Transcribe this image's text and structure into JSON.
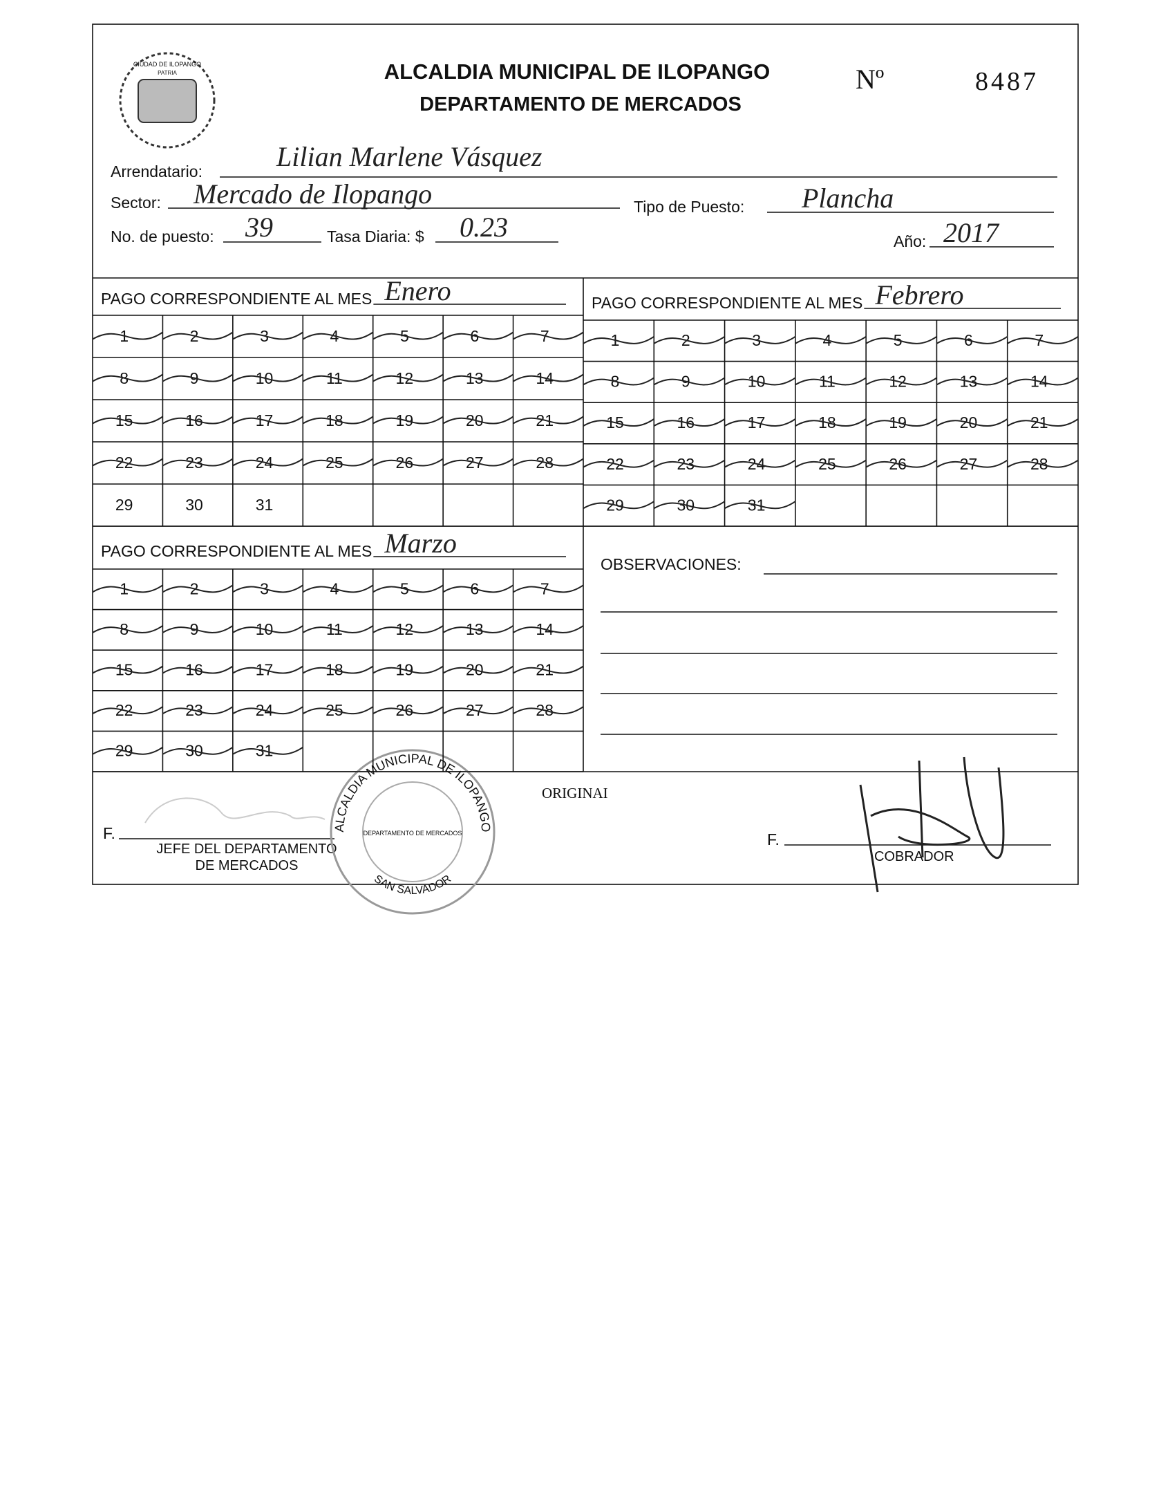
{
  "header": {
    "title": "ALCALDIA MUNICIPAL DE ILOPANGO",
    "subtitle": "DEPARTAMENTO DE MERCADOS",
    "number_label": "Nº",
    "number": "8487",
    "logo_text": "CIUDAD DE ILOPANGO",
    "logo_motto": "PATRIA"
  },
  "fields": [
    {
      "label": "Arrendatario:",
      "value": "Lilian Marlene Vásquez"
    },
    {
      "label": "Sector:",
      "value": "Mercado de Ilopango"
    },
    {
      "label": "Tipo de Puesto:",
      "value": "Plancha"
    },
    {
      "label": "No. de puesto:",
      "value": "39"
    },
    {
      "label": "Tasa Diaria: $",
      "value": "0.23"
    },
    {
      "label": "Año:",
      "value": "2017"
    }
  ],
  "months": [
    {
      "label": "PAGO CORRESPONDIENTE AL MES",
      "month": "Enero",
      "days": [
        1,
        2,
        3,
        4,
        5,
        6,
        7,
        8,
        9,
        10,
        11,
        12,
        13,
        14,
        15,
        16,
        17,
        18,
        19,
        20,
        21,
        22,
        23,
        24,
        25,
        26,
        27,
        28,
        29,
        30,
        31
      ]
    },
    {
      "label": "PAGO CORRESPONDIENTE AL MES",
      "month": "Febrero",
      "days": [
        1,
        2,
        3,
        4,
        5,
        6,
        7,
        8,
        9,
        10,
        11,
        12,
        13,
        14,
        15,
        16,
        17,
        18,
        19,
        20,
        21,
        22,
        23,
        24,
        25,
        26,
        27,
        28,
        29,
        30,
        31
      ]
    },
    {
      "label": "PAGO CORRESPONDIENTE AL MES",
      "month": "Marzo",
      "days": [
        1,
        2,
        3,
        4,
        5,
        6,
        7,
        8,
        9,
        10,
        11,
        12,
        13,
        14,
        15,
        16,
        17,
        18,
        19,
        20,
        21,
        22,
        23,
        24,
        25,
        26,
        27,
        28,
        29,
        30,
        31
      ]
    }
  ],
  "observations": {
    "label": "OBSERVACIONES:"
  },
  "footer": {
    "left_sign": "F.",
    "left_role": "JEFE DEL DEPARTAMENTO",
    "left_role_2": "DE MERCADOS",
    "right_sign": "F.",
    "right_role": "COBRADOR",
    "stamp": "ORIGINAI",
    "seal_top": "ALCALDIA MUNICIPAL DE ILOPANGO",
    "seal_inner": "DEPARTAMENTO DE MERCADOS",
    "seal_bottom": "SAN SALVADOR"
  }
}
